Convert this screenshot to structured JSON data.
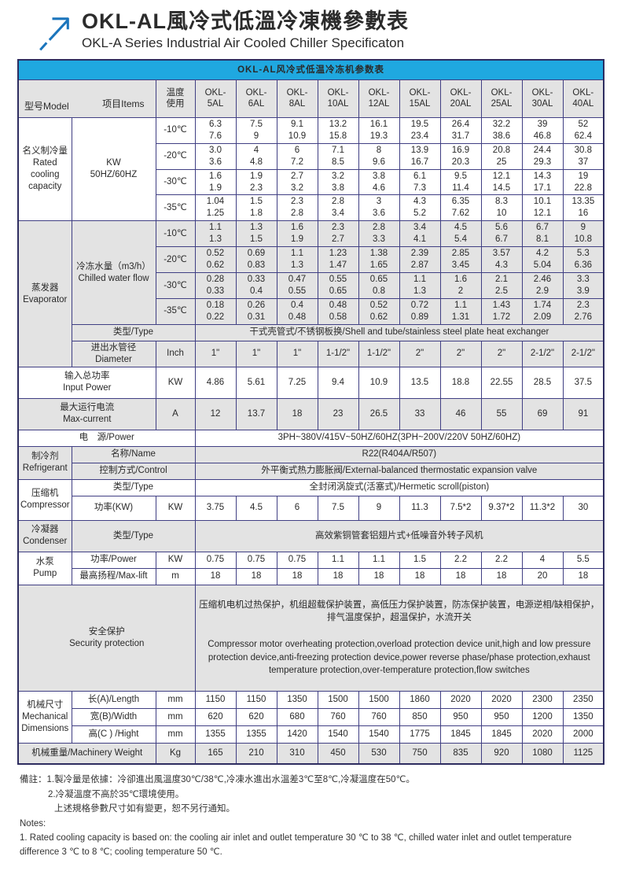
{
  "page": {
    "title_zh": "OKL-AL風冷式低溫冷凍機參數表",
    "title_en": "OKL-A Series Industrial Air Cooled Chiller Specificaton"
  },
  "colors": {
    "header_blue": "#1fa8e0",
    "arrow_blue": "#1b75bc",
    "grid_line": "#403f83",
    "shade_gray": "#e3e3e3"
  },
  "table": {
    "title": "OKL-AL风冷式低温冷冻机参数表",
    "corner": {
      "model": "型号Model",
      "items": "项目Items"
    },
    "temp_header": "温度\n使用",
    "models": [
      "OKL-\n5AL",
      "OKL-\n6AL",
      "OKL-\n8AL",
      "OKL-\n10AL",
      "OKL-\n12AL",
      "OKL-\n15AL",
      "OKL-\n20AL",
      "OKL-\n25AL",
      "OKL-\n30AL",
      "OKL-\n40AL"
    ],
    "cooling": {
      "label": "名义制冷量\nRated\ncooling\ncapacity",
      "unit": "KW\n50HZ/60HZ",
      "rows": [
        {
          "temp": "-10℃",
          "values": [
            "6.3\n7.6",
            "7.5\n9",
            "9.1\n10.9",
            "13.2\n15.8",
            "16.1\n19.3",
            "19.5\n23.4",
            "26.4\n31.7",
            "32.2\n38.6",
            "39\n46.8",
            "52\n62.4"
          ]
        },
        {
          "temp": "-20℃",
          "values": [
            "3.0\n3.6",
            "4\n4.8",
            "6\n7.2",
            "7.1\n8.5",
            "8\n9.6",
            "13.9\n16.7",
            "16.9\n20.3",
            "20.8\n25",
            "24.4\n29.3",
            "30.8\n37"
          ]
        },
        {
          "temp": "-30℃",
          "values": [
            "1.6\n1.9",
            "1.9\n2.3",
            "2.7\n3.2",
            "3.2\n3.8",
            "3.8\n4.6",
            "6.1\n7.3",
            "9.5\n11.4",
            "12.1\n14.5",
            "14.3\n17.1",
            "19\n22.8"
          ]
        },
        {
          "temp": "-35℃",
          "values": [
            "1.04\n1.25",
            "1.5\n1.8",
            "2.3\n2.8",
            "2.8\n3.4",
            "3\n3.6",
            "4.3\n5.2",
            "6.35\n7.62",
            "8.3\n10",
            "10.1\n12.1",
            "13.35\n16"
          ]
        }
      ]
    },
    "evaporator": {
      "label": "蒸发器\nEvaporator",
      "flow_label": "冷冻水量（m3/h）\nChilled water flow",
      "rows": [
        {
          "temp": "-10℃",
          "values": [
            "1.1\n1.3",
            "1.3\n1.5",
            "1.6\n1.9",
            "2.3\n2.7",
            "2.8\n3.3",
            "3.4\n4.1",
            "4.5\n5.4",
            "5.6\n6.7",
            "6.7\n8.1",
            "9\n10.8"
          ]
        },
        {
          "temp": "-20℃",
          "values": [
            "0.52\n0.62",
            "0.69\n0.83",
            "1.1\n1.3",
            "1.23\n1.47",
            "1.38\n1.65",
            "2.39\n2.87",
            "2.85\n3.45",
            "3.57\n4.3",
            "4.2\n5.04",
            "5.3\n6.36"
          ]
        },
        {
          "temp": "-30℃",
          "values": [
            "0.28\n0.33",
            "0.33\n0.4",
            "0.47\n0.55",
            "0.55\n0.65",
            "0.65\n0.8",
            "1.1\n1.3",
            "1.6\n2",
            "2.1\n2.5",
            "2.46\n2.9",
            "3.3\n3.9"
          ]
        },
        {
          "temp": "-35℃",
          "values": [
            "0.18\n0.22",
            "0.26\n0.31",
            "0.4\n0.48",
            "0.48\n0.58",
            "0.52\n0.62",
            "0.72\n0.89",
            "1.1\n1.31",
            "1.43\n1.72",
            "1.74\n2.09",
            "2.3\n2.76"
          ]
        }
      ],
      "type_label": "类型/Type",
      "type_value": "干式壳管式/不锈钢板换/Shell and tube/stainless steel plate heat exchanger",
      "diameter_label": "进出水管径\nDiameter",
      "diameter_unit": "Inch",
      "diameter_values": [
        "1\"",
        "1\"",
        "1\"",
        "1-1/2\"",
        "1-1/2\"",
        "2\"",
        "2\"",
        "2\"",
        "2-1/2\"",
        "2-1/2\""
      ]
    },
    "input_power": {
      "label": "输入总功率\nInput Power",
      "unit": "KW",
      "values": [
        "4.86",
        "5.61",
        "7.25",
        "9.4",
        "10.9",
        "13.5",
        "18.8",
        "22.55",
        "28.5",
        "37.5"
      ]
    },
    "max_current": {
      "label": "最大运行电流\nMax-current",
      "unit": "A",
      "values": [
        "12",
        "13.7",
        "18",
        "23",
        "26.5",
        "33",
        "46",
        "55",
        "69",
        "91"
      ]
    },
    "power_supply": {
      "label": "电　源/Power",
      "value": "3PH~380V/415V~50HZ/60HZ(3PH~200V/220V  50HZ/60HZ)"
    },
    "refrigerant": {
      "label": "制冷剂\nRefrigerant",
      "name_label": "名称/Name",
      "name_value": "R22(R404A/R507)",
      "control_label": "控制方式/Control",
      "control_value": "外平衡式热力膨胀阀/External-balanced thermostatic expansion valve"
    },
    "compressor": {
      "label": "压缩机\nCompressor",
      "type_label": "类型/Type",
      "type_value": "全封闭涡旋式(活塞式)/Hermetic scroll(piston)",
      "power_label": "功率(KW)",
      "power_unit": "KW",
      "power_values": [
        "3.75",
        "4.5",
        "6",
        "7.5",
        "9",
        "11.3",
        "7.5*2",
        "9.37*2",
        "11.3*2",
        "30"
      ]
    },
    "condenser": {
      "label": "冷凝器\nCondenser",
      "type_label": "类型/Type",
      "type_value": "高效紫铜管套铝翅片式+低噪音外转子风机"
    },
    "pump": {
      "label": "水泵\nPump",
      "power_label": "功率/Power",
      "power_unit": "KW",
      "power_values": [
        "0.75",
        "0.75",
        "0.75",
        "1.1",
        "1.1",
        "1.5",
        "2.2",
        "2.2",
        "4",
        "5.5"
      ],
      "lift_label": "最高扬程/Max-lift",
      "lift_unit": "m",
      "lift_values": [
        "18",
        "18",
        "18",
        "18",
        "18",
        "18",
        "18",
        "18",
        "20",
        "18"
      ]
    },
    "security": {
      "label": "安全保护\nSecurity protection",
      "text_zh": "压缩机电机过热保护，机组超载保护装置，高低压力保护装置，防冻保护装置，电源逆相/缺相保护，排气温度保护，超温保护，水流开关",
      "text_en": "Compressor motor overheating protection,overload protection device unit,high and low pressure protection device,anti-freezing protection device,power reverse phase/phase protection,exhaust temperature protection,over-temperature protection,flow switches"
    },
    "dimensions": {
      "label": "机械尺寸\nMechanical\nDimensions",
      "rows": [
        {
          "label": "长(A)/Length",
          "unit": "mm",
          "values": [
            "1150",
            "1150",
            "1350",
            "1500",
            "1500",
            "1860",
            "2020",
            "2020",
            "2300",
            "2350"
          ]
        },
        {
          "label": "宽(B)/Width",
          "unit": "mm",
          "values": [
            "620",
            "620",
            "680",
            "760",
            "760",
            "850",
            "950",
            "950",
            "1200",
            "1350"
          ]
        },
        {
          "label": "高(C ) /Hight",
          "unit": "mm",
          "values": [
            "1355",
            "1355",
            "1420",
            "1540",
            "1540",
            "1775",
            "1845",
            "1845",
            "2020",
            "2000"
          ]
        }
      ]
    },
    "weight": {
      "label": "机械重量/Machinery Weight",
      "unit": "Kg",
      "values": [
        "165",
        "210",
        "310",
        "450",
        "530",
        "750",
        "835",
        "920",
        "1080",
        "1125"
      ]
    }
  },
  "notes": {
    "zh1": "備註：1.製冷量是依據：冷卻進出風溫度30℃/38℃,冷凍水進出水溫差3℃至8℃,冷凝溫度在50℃。",
    "zh2": "2.冷凝溫度不高於35℃環境使用。",
    "zh3": "上述規格參數尺寸如有變更，恕不另行通知。",
    "en_title": "Notes:",
    "en1": "1. Rated cooling capacity is based on: the cooling air inlet and outlet temperature 30 ℃ to 38 ℃, chilled water inlet and outlet temperature difference 3 ℃ to 8 ℃; cooling temperature 50 ℃."
  }
}
